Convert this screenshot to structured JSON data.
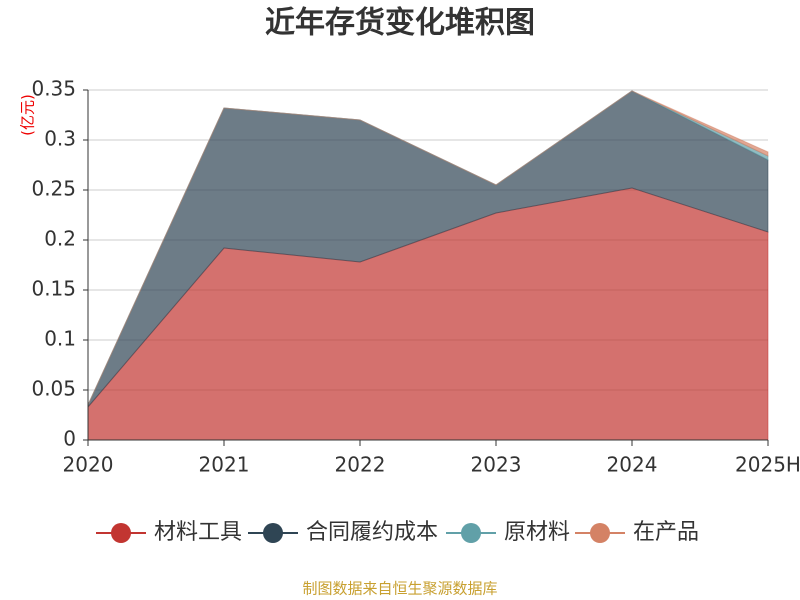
{
  "chart_data": {
    "type": "stacked-area",
    "title": "近年存货变化堆积图",
    "y_label": "(亿元)",
    "categories": [
      "2020",
      "2021",
      "2022",
      "2023",
      "2024",
      "2025H"
    ],
    "series": [
      {
        "name": "材料工具",
        "color": "#c23531",
        "values": [
          0.033,
          0.192,
          0.178,
          0.227,
          0.252,
          0.208
        ]
      },
      {
        "name": "合同履约成本",
        "color": "#2f4554",
        "values": [
          0.002,
          0.14,
          0.142,
          0.028,
          0.097,
          0.072
        ]
      },
      {
        "name": "原材料",
        "color": "#61a0a8",
        "values": [
          0,
          0,
          0,
          0,
          0,
          0.004
        ]
      },
      {
        "name": "在产品",
        "color": "#d48265",
        "values": [
          0,
          0,
          0,
          0,
          0,
          0.004
        ]
      }
    ],
    "ylim": [
      0,
      0.35
    ],
    "yticks": [
      0,
      0.05,
      0.1,
      0.15,
      0.2,
      0.25,
      0.3,
      0.35
    ],
    "grid": true,
    "legend": "bottom",
    "source": "制图数据来自恒生聚源数据库"
  }
}
